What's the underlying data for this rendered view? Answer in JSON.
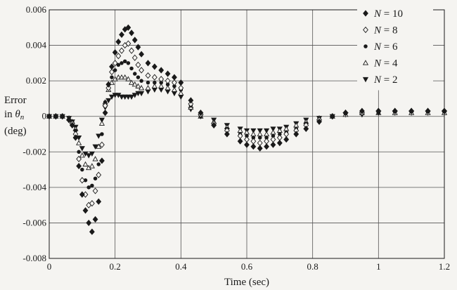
{
  "chart_data": {
    "type": "scatter",
    "title": "",
    "xlabel": "Time (sec)",
    "ylabel": {
      "line1": "Error",
      "line2_prefix": "in ",
      "line2_symbol": "θ",
      "line2_subscript": "n",
      "line3": "(deg)"
    },
    "xlim": [
      0,
      1.2
    ],
    "ylim": [
      -0.008,
      0.006
    ],
    "xticks": [
      "0",
      "0.2",
      "0.4",
      "0.6",
      "0.8",
      "1",
      "1.2"
    ],
    "yticks": [
      "-0.008",
      "-0.006",
      "-0.004",
      "-0.002",
      "0",
      "0.002",
      "0.004",
      "0.006"
    ],
    "grid": true,
    "legend_position": "top-right",
    "series": [
      {
        "label_var": "N",
        "label_eq": " = 10",
        "marker": "filled-diamond",
        "x": [
          0.0,
          0.02,
          0.04,
          0.06,
          0.07,
          0.08,
          0.09,
          0.1,
          0.11,
          0.12,
          0.13,
          0.14,
          0.15,
          0.16,
          0.17,
          0.18,
          0.19,
          0.2,
          0.21,
          0.22,
          0.23,
          0.24,
          0.25,
          0.26,
          0.27,
          0.28,
          0.3,
          0.32,
          0.34,
          0.36,
          0.38,
          0.4,
          0.43,
          0.46,
          0.5,
          0.54,
          0.58,
          0.6,
          0.62,
          0.64,
          0.66,
          0.68,
          0.7,
          0.72,
          0.75,
          0.78,
          0.82,
          0.86,
          0.9,
          0.95,
          1.0,
          1.05,
          1.1,
          1.15,
          1.2
        ],
        "y": [
          0.0,
          0.0,
          0.0,
          -0.0002,
          -0.0005,
          -0.0012,
          -0.0028,
          -0.0044,
          -0.0053,
          -0.006,
          -0.0065,
          -0.0058,
          -0.0048,
          -0.0025,
          0.0002,
          0.0018,
          0.0028,
          0.0036,
          0.0042,
          0.0046,
          0.0049,
          0.005,
          0.0047,
          0.0043,
          0.0039,
          0.0035,
          0.003,
          0.0028,
          0.0026,
          0.0024,
          0.0022,
          0.0019,
          0.0009,
          0.0002,
          -0.0005,
          -0.001,
          -0.0014,
          -0.0016,
          -0.0017,
          -0.0018,
          -0.0017,
          -0.0016,
          -0.0015,
          -0.0013,
          -0.001,
          -0.0007,
          -0.0003,
          0.0,
          0.0002,
          0.0003,
          0.0003,
          0.0003,
          0.0003,
          0.0003,
          0.0003
        ]
      },
      {
        "label_var": "N",
        "label_eq": " = 8",
        "marker": "open-diamond",
        "x": [
          0.0,
          0.02,
          0.04,
          0.06,
          0.07,
          0.08,
          0.09,
          0.1,
          0.11,
          0.12,
          0.13,
          0.14,
          0.15,
          0.16,
          0.17,
          0.18,
          0.19,
          0.2,
          0.21,
          0.22,
          0.23,
          0.24,
          0.25,
          0.26,
          0.27,
          0.28,
          0.3,
          0.32,
          0.34,
          0.36,
          0.38,
          0.4,
          0.43,
          0.46,
          0.5,
          0.54,
          0.58,
          0.6,
          0.62,
          0.64,
          0.66,
          0.68,
          0.7,
          0.72,
          0.75,
          0.78,
          0.82,
          0.86,
          0.9,
          0.95,
          1.0,
          1.05,
          1.1,
          1.15,
          1.2
        ],
        "y": [
          0.0,
          0.0,
          0.0,
          -0.0002,
          -0.0004,
          -0.001,
          -0.0024,
          -0.0036,
          -0.0044,
          -0.005,
          -0.0049,
          -0.0042,
          -0.0033,
          -0.0016,
          0.0006,
          0.0016,
          0.0025,
          0.003,
          0.0034,
          0.0037,
          0.004,
          0.0041,
          0.0037,
          0.0033,
          0.0029,
          0.0026,
          0.0023,
          0.0022,
          0.0021,
          0.002,
          0.0019,
          0.0016,
          0.0007,
          0.0001,
          -0.0004,
          -0.0008,
          -0.0011,
          -0.0013,
          -0.0014,
          -0.0015,
          -0.0014,
          -0.0013,
          -0.0012,
          -0.001,
          -0.0008,
          -0.0005,
          -0.0002,
          0.0,
          0.0002,
          0.0002,
          0.0003,
          0.0003,
          0.0003,
          0.0003,
          0.0003
        ]
      },
      {
        "label_var": "N",
        "label_eq": " = 6",
        "marker": "filled-circle",
        "x": [
          0.0,
          0.02,
          0.04,
          0.06,
          0.07,
          0.08,
          0.09,
          0.1,
          0.11,
          0.12,
          0.13,
          0.14,
          0.15,
          0.16,
          0.17,
          0.18,
          0.19,
          0.2,
          0.21,
          0.22,
          0.23,
          0.24,
          0.25,
          0.26,
          0.27,
          0.28,
          0.3,
          0.32,
          0.34,
          0.36,
          0.38,
          0.4,
          0.43,
          0.46,
          0.5,
          0.54,
          0.58,
          0.6,
          0.62,
          0.64,
          0.66,
          0.68,
          0.7,
          0.72,
          0.75,
          0.78,
          0.82,
          0.86,
          0.9,
          0.95,
          1.0,
          1.05,
          1.1,
          1.15,
          1.2
        ],
        "y": [
          0.0,
          0.0,
          0.0,
          -0.0002,
          -0.0003,
          -0.0008,
          -0.002,
          -0.003,
          -0.0036,
          -0.004,
          -0.0039,
          -0.0035,
          -0.0027,
          -0.001,
          0.0008,
          0.0016,
          0.0022,
          0.0026,
          0.0029,
          0.003,
          0.0031,
          0.003,
          0.0027,
          0.0024,
          0.0022,
          0.002,
          0.0019,
          0.0019,
          0.0019,
          0.0018,
          0.0017,
          0.0015,
          0.0006,
          0.0,
          -0.0004,
          -0.0007,
          -0.001,
          -0.0011,
          -0.0012,
          -0.0012,
          -0.0012,
          -0.0011,
          -0.001,
          -0.0009,
          -0.0007,
          -0.0004,
          -0.0002,
          0.0,
          0.0002,
          0.0002,
          0.0002,
          0.0003,
          0.0003,
          0.0003,
          0.0003
        ]
      },
      {
        "label_var": "N",
        "label_eq": " = 4",
        "marker": "open-triangle-up",
        "x": [
          0.0,
          0.02,
          0.04,
          0.06,
          0.07,
          0.08,
          0.09,
          0.1,
          0.11,
          0.12,
          0.13,
          0.14,
          0.15,
          0.16,
          0.17,
          0.18,
          0.19,
          0.2,
          0.21,
          0.22,
          0.23,
          0.24,
          0.25,
          0.26,
          0.27,
          0.28,
          0.3,
          0.32,
          0.34,
          0.36,
          0.38,
          0.4,
          0.43,
          0.46,
          0.5,
          0.54,
          0.58,
          0.6,
          0.62,
          0.64,
          0.66,
          0.68,
          0.7,
          0.72,
          0.75,
          0.78,
          0.82,
          0.86,
          0.9,
          0.95,
          1.0,
          1.05,
          1.1,
          1.15,
          1.2
        ],
        "y": [
          0.0,
          0.0,
          0.0,
          -0.0001,
          -0.0003,
          -0.0007,
          -0.0015,
          -0.0022,
          -0.0027,
          -0.0029,
          -0.0028,
          -0.0024,
          -0.0017,
          -0.0004,
          0.0008,
          0.0015,
          0.0019,
          0.0021,
          0.0022,
          0.0022,
          0.0022,
          0.0021,
          0.0019,
          0.0018,
          0.0017,
          0.0016,
          0.0016,
          0.0017,
          0.0017,
          0.0016,
          0.0015,
          0.0013,
          0.0005,
          0.0,
          -0.0003,
          -0.0006,
          -0.0008,
          -0.0009,
          -0.001,
          -0.001,
          -0.001,
          -0.0009,
          -0.0008,
          -0.0007,
          -0.0005,
          -0.0003,
          -0.0001,
          0.0,
          0.0001,
          0.0002,
          0.0002,
          0.0002,
          0.0002,
          0.0002,
          0.0002
        ]
      },
      {
        "label_var": "N",
        "label_eq": " = 2",
        "marker": "filled-triangle-down",
        "x": [
          0.0,
          0.02,
          0.04,
          0.06,
          0.07,
          0.08,
          0.09,
          0.1,
          0.11,
          0.12,
          0.13,
          0.14,
          0.15,
          0.16,
          0.17,
          0.18,
          0.19,
          0.2,
          0.21,
          0.22,
          0.23,
          0.24,
          0.25,
          0.26,
          0.27,
          0.28,
          0.3,
          0.32,
          0.34,
          0.36,
          0.38,
          0.4,
          0.43,
          0.46,
          0.5,
          0.54,
          0.58,
          0.6,
          0.62,
          0.64,
          0.66,
          0.68,
          0.7,
          0.72,
          0.75,
          0.78,
          0.82,
          0.86,
          0.9,
          0.95,
          1.0,
          1.05,
          1.1,
          1.15,
          1.2
        ],
        "y": [
          0.0,
          0.0,
          0.0,
          -0.0001,
          -0.0003,
          -0.0006,
          -0.0012,
          -0.0018,
          -0.0021,
          -0.0022,
          -0.0021,
          -0.0017,
          -0.0011,
          -0.0002,
          0.0005,
          0.0009,
          0.0011,
          0.0012,
          0.0012,
          0.0011,
          0.0011,
          0.0011,
          0.0011,
          0.0012,
          0.0013,
          0.0013,
          0.0014,
          0.0015,
          0.0015,
          0.0014,
          0.0013,
          0.0011,
          0.0004,
          0.0,
          -0.0002,
          -0.0005,
          -0.0007,
          -0.0008,
          -0.0008,
          -0.0008,
          -0.0008,
          -0.0007,
          -0.0007,
          -0.0006,
          -0.0004,
          -0.0002,
          -0.0001,
          0.0,
          0.0001,
          0.0001,
          0.0002,
          0.0002,
          0.0002,
          0.0002,
          0.0002
        ]
      }
    ]
  }
}
